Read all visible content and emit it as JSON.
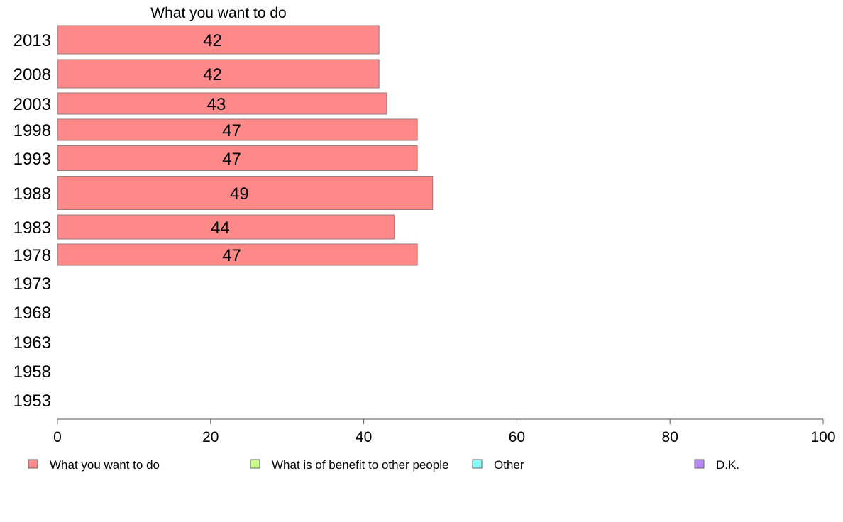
{
  "chart_data": {
    "type": "bar",
    "orientation": "horizontal",
    "title": "What you want to do",
    "categories": [
      "2013",
      "2008",
      "2003",
      "1998",
      "1993",
      "1988",
      "1983",
      "1978",
      "1973",
      "1968",
      "1963",
      "1958",
      "1953"
    ],
    "series": [
      {
        "name": "What you want to do",
        "color": "#ff8888",
        "values": [
          42,
          42,
          43,
          47,
          47,
          49,
          44,
          47,
          null,
          null,
          null,
          null,
          null
        ],
        "labels": [
          "42",
          "42",
          "43",
          "47",
          "47",
          "49",
          "44",
          "47",
          "",
          "",
          "",
          "",
          ""
        ]
      },
      {
        "name": "What is of benefit to other people",
        "color": "#c8ff88",
        "values": [
          null,
          null,
          null,
          null,
          null,
          null,
          null,
          null,
          null,
          null,
          null,
          null,
          null
        ]
      },
      {
        "name": "Other",
        "color": "#88ffff",
        "values": [
          null,
          null,
          null,
          null,
          null,
          null,
          null,
          null,
          null,
          null,
          null,
          null,
          null
        ]
      },
      {
        "name": "D.K.",
        "color": "#b888ff",
        "values": [
          null,
          null,
          null,
          null,
          null,
          null,
          null,
          null,
          null,
          null,
          null,
          null,
          null
        ]
      }
    ],
    "xlim": [
      0,
      100
    ],
    "xticks": [
      "0",
      "20",
      "40",
      "60",
      "80",
      "100"
    ],
    "xlabel": "",
    "ylabel": "",
    "grid": false,
    "legend_position": "bottom"
  }
}
